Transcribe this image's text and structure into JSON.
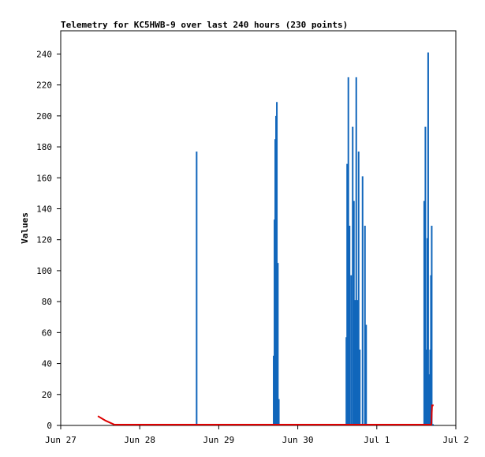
{
  "chart_data": {
    "type": "bar",
    "title": "Telemetry for KC5HWB-9 over last 240 hours (230 points)",
    "xlabel": "",
    "ylabel": "Values",
    "xlim": [
      0,
      5.0
    ],
    "ylim": [
      0,
      255
    ],
    "x_ticks": [
      {
        "x": 0,
        "label": "Jun 27"
      },
      {
        "x": 1,
        "label": "Jun 28"
      },
      {
        "x": 2,
        "label": "Jun 29"
      },
      {
        "x": 3,
        "label": "Jun 30"
      },
      {
        "x": 4,
        "label": "Jul 1"
      },
      {
        "x": 5,
        "label": "Jul 2"
      }
    ],
    "y_ticks": [
      0,
      20,
      40,
      60,
      80,
      100,
      120,
      140,
      160,
      180,
      200,
      220,
      240
    ],
    "grid": false,
    "legend": "none",
    "series": [
      {
        "color": "#1166bb",
        "style": "spikes",
        "points": [
          {
            "x": 1.72,
            "y": 177
          },
          {
            "x": 2.695,
            "y": 45
          },
          {
            "x": 2.705,
            "y": 133
          },
          {
            "x": 2.715,
            "y": 185
          },
          {
            "x": 2.725,
            "y": 200
          },
          {
            "x": 2.735,
            "y": 209
          },
          {
            "x": 2.748,
            "y": 105
          },
          {
            "x": 2.76,
            "y": 17
          },
          {
            "x": 3.615,
            "y": 57
          },
          {
            "x": 3.625,
            "y": 169
          },
          {
            "x": 3.64,
            "y": 225
          },
          {
            "x": 3.655,
            "y": 129
          },
          {
            "x": 3.675,
            "y": 97
          },
          {
            "x": 3.695,
            "y": 193
          },
          {
            "x": 3.71,
            "y": 145
          },
          {
            "x": 3.725,
            "y": 81
          },
          {
            "x": 3.74,
            "y": 225
          },
          {
            "x": 3.755,
            "y": 81
          },
          {
            "x": 3.77,
            "y": 177
          },
          {
            "x": 3.785,
            "y": 49
          },
          {
            "x": 3.82,
            "y": 161
          },
          {
            "x": 3.85,
            "y": 129
          },
          {
            "x": 3.865,
            "y": 65
          },
          {
            "x": 4.6,
            "y": 145
          },
          {
            "x": 4.615,
            "y": 193
          },
          {
            "x": 4.63,
            "y": 49
          },
          {
            "x": 4.64,
            "y": 121
          },
          {
            "x": 4.65,
            "y": 241
          },
          {
            "x": 4.665,
            "y": 33
          },
          {
            "x": 4.675,
            "y": 49
          },
          {
            "x": 4.685,
            "y": 97
          },
          {
            "x": 4.695,
            "y": 129
          }
        ]
      },
      {
        "color": "#dd0000",
        "style": "line",
        "points": [
          {
            "x": 0.47,
            "y": 6
          },
          {
            "x": 0.57,
            "y": 3
          },
          {
            "x": 0.68,
            "y": 0
          },
          {
            "x": 4.69,
            "y": 0
          },
          {
            "x": 4.7,
            "y": 13
          },
          {
            "x": 4.72,
            "y": 13
          }
        ]
      }
    ]
  }
}
